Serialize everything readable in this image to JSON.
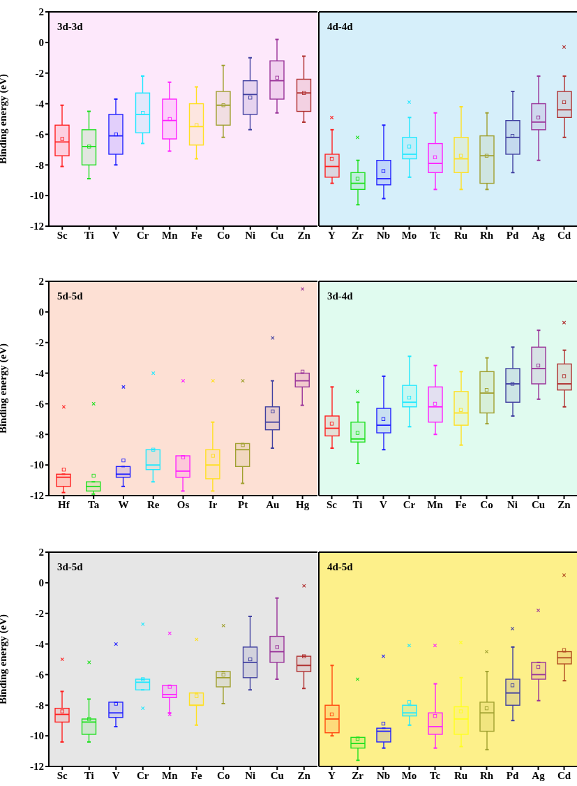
{
  "chart_data": [
    {
      "type": "box",
      "title": "3d-3d",
      "ylabel": "Binding energy (eV)",
      "categories": [
        "Sc",
        "Ti",
        "V",
        "Cr",
        "Mn",
        "Fe",
        "Co",
        "Ni",
        "Cu",
        "Zn"
      ],
      "colors": [
        "#ff2020",
        "#20e020",
        "#2020ff",
        "#20e8ff",
        "#ff20ff",
        "#ffe020",
        "#a0a030",
        "#4040a0",
        "#993399",
        "#b03030"
      ],
      "ylim": [
        -12,
        2
      ],
      "yticks": [
        -12,
        -10,
        -8,
        -6,
        -4,
        -2,
        0,
        2
      ],
      "boxes": [
        {
          "low": -8.1,
          "q1": -7.4,
          "median": -6.5,
          "q3": -5.4,
          "high": -4.1,
          "mean": -6.3
        },
        {
          "low": -8.9,
          "q1": -8.0,
          "median": -6.8,
          "q3": -5.7,
          "high": -4.5,
          "mean": -6.8
        },
        {
          "low": -8.0,
          "q1": -7.3,
          "median": -6.1,
          "q3": -4.7,
          "high": -3.7,
          "mean": -6.0
        },
        {
          "low": -6.6,
          "q1": -5.9,
          "median": -4.7,
          "q3": -3.3,
          "high": -2.2,
          "mean": -4.6
        },
        {
          "low": -7.1,
          "q1": -6.3,
          "median": -5.1,
          "q3": -3.7,
          "high": -2.6,
          "mean": -5.0
        },
        {
          "low": -7.6,
          "q1": -6.7,
          "median": -5.5,
          "q3": -4.0,
          "high": -2.9,
          "mean": -5.4
        },
        {
          "low": -6.2,
          "q1": -5.4,
          "median": -4.1,
          "q3": -3.2,
          "high": -1.5,
          "mean": -4.1
        },
        {
          "low": -5.7,
          "q1": -4.7,
          "median": -3.4,
          "q3": -2.5,
          "high": -1.0,
          "mean": -3.6
        },
        {
          "low": -4.6,
          "q1": -3.7,
          "median": -2.5,
          "q3": -1.2,
          "high": 0.2,
          "mean": -2.3
        },
        {
          "low": -5.2,
          "q1": -4.5,
          "median": -3.3,
          "q3": -2.4,
          "high": -0.9,
          "mean": -3.3
        }
      ]
    },
    {
      "type": "box",
      "title": "4d-4d",
      "tick_labels": "x",
      "categories": [
        "Y",
        "Zr",
        "Nb",
        "Mo",
        "Tc",
        "Ru",
        "Rh",
        "Pd",
        "Ag",
        "Cd"
      ],
      "colors": [
        "#ff2020",
        "#20e020",
        "#2020ff",
        "#20e8ff",
        "#ff20ff",
        "#ffe020",
        "#a0a030",
        "#4040a0",
        "#993399",
        "#b03030"
      ],
      "ylim": [
        -12,
        2
      ],
      "yticks": [
        -12,
        -10,
        -8,
        -6,
        -4,
        -2,
        0,
        2
      ],
      "boxes": [
        {
          "low": -9.2,
          "q1": -8.8,
          "median": -8.1,
          "q3": -7.3,
          "high": -5.7,
          "mean": -7.6,
          "outliers": [
            -4.9
          ]
        },
        {
          "low": -10.6,
          "q1": -9.6,
          "median": -9.2,
          "q3": -8.5,
          "high": -7.7,
          "mean": -8.9,
          "outliers": [
            -6.2
          ]
        },
        {
          "low": -10.2,
          "q1": -9.3,
          "median": -8.9,
          "q3": -7.7,
          "high": -5.4,
          "mean": -8.4
        },
        {
          "low": -8.8,
          "q1": -7.6,
          "median": -7.3,
          "q3": -6.2,
          "high": -4.9,
          "mean": -6.8,
          "outliers": [
            -3.9
          ]
        },
        {
          "low": -9.6,
          "q1": -8.5,
          "median": -7.9,
          "q3": -6.6,
          "high": -4.6,
          "mean": -7.5
        },
        {
          "low": -9.6,
          "q1": -8.5,
          "median": -7.6,
          "q3": -6.2,
          "high": -4.2,
          "mean": -7.4
        },
        {
          "low": -9.6,
          "q1": -9.2,
          "median": -7.4,
          "q3": -6.1,
          "high": -4.6,
          "mean": -7.4
        },
        {
          "low": -8.5,
          "q1": -7.3,
          "median": -6.2,
          "q3": -5.1,
          "high": -3.2,
          "mean": -6.1
        },
        {
          "low": -7.7,
          "q1": -5.7,
          "median": -5.2,
          "q3": -4.0,
          "high": -2.2,
          "mean": -4.9
        },
        {
          "low": -6.2,
          "q1": -4.9,
          "median": -4.4,
          "q3": -3.2,
          "high": -2.2,
          "mean": -3.9,
          "outliers": [
            -0.3
          ]
        }
      ]
    },
    {
      "type": "box",
      "title": "5d-5d",
      "ylabel": "Binding energy (eV)",
      "categories": [
        "Hf",
        "Ta",
        "W",
        "Re",
        "Os",
        "Ir",
        "Pt",
        "Au",
        "Hg"
      ],
      "colors": [
        "#ff2020",
        "#20e020",
        "#2020ff",
        "#20e8ff",
        "#ff20ff",
        "#ffe020",
        "#a0a030",
        "#4040a0",
        "#993399"
      ],
      "ylim": [
        -12,
        2
      ],
      "yticks": [
        -12,
        -10,
        -8,
        -6,
        -4,
        -2,
        0,
        2
      ],
      "boxes": [
        {
          "low": -11.8,
          "q1": -11.4,
          "median": -10.8,
          "q3": -10.6,
          "high": -10.6,
          "mean": -10.3,
          "outliers": [
            -6.2
          ]
        },
        {
          "low": -11.9,
          "q1": -11.7,
          "median": -11.4,
          "q3": -11.1,
          "high": -11.1,
          "mean": -10.7,
          "outliers": [
            -6.0
          ]
        },
        {
          "low": -11.4,
          "q1": -10.8,
          "median": -10.6,
          "q3": -10.1,
          "high": -10.1,
          "mean": -9.7,
          "outliers": [
            -4.9
          ]
        },
        {
          "low": -11.1,
          "q1": -10.3,
          "median": -10.0,
          "q3": -9.0,
          "high": -9.0,
          "mean": -9.0,
          "outliers": [
            -4.0
          ]
        },
        {
          "low": -11.7,
          "q1": -10.8,
          "median": -10.4,
          "q3": -9.4,
          "high": -9.4,
          "mean": -9.5,
          "outliers": [
            -4.5
          ]
        },
        {
          "low": -11.7,
          "q1": -10.9,
          "median": -10.0,
          "q3": -9.0,
          "high": -7.2,
          "mean": -9.4,
          "outliers": [
            -4.5
          ]
        },
        {
          "low": -11.2,
          "q1": -10.1,
          "median": -9.0,
          "q3": -8.6,
          "high": -8.6,
          "mean": -8.7,
          "outliers": [
            -4.5
          ]
        },
        {
          "low": -8.9,
          "q1": -7.7,
          "median": -7.2,
          "q3": -6.2,
          "high": -4.5,
          "mean": -6.5,
          "outliers": [
            -1.7
          ]
        },
        {
          "low": -6.1,
          "q1": -4.9,
          "median": -4.5,
          "q3": -4.0,
          "high": -4.0,
          "mean": -3.9,
          "outliers": [
            1.5
          ]
        }
      ]
    },
    {
      "type": "box",
      "title": "3d-4d",
      "tick_labels": "x",
      "categories": [
        "Sc",
        "Ti",
        "V",
        "Cr",
        "Mn",
        "Fe",
        "Co",
        "Ni",
        "Cu",
        "Zn"
      ],
      "colors": [
        "#ff2020",
        "#20e020",
        "#2020ff",
        "#20e8ff",
        "#ff20ff",
        "#ffe020",
        "#a0a030",
        "#4040a0",
        "#993399",
        "#b03030"
      ],
      "ylim": [
        -12,
        2
      ],
      "yticks": [
        -12,
        -10,
        -8,
        -6,
        -4,
        -2,
        0,
        2
      ],
      "boxes": [
        {
          "low": -8.9,
          "q1": -8.1,
          "median": -7.6,
          "q3": -6.8,
          "high": -4.9,
          "mean": -7.3
        },
        {
          "low": -9.9,
          "q1": -8.5,
          "median": -8.3,
          "q3": -7.2,
          "high": -5.9,
          "mean": -7.9,
          "outliers": [
            -5.2
          ]
        },
        {
          "low": -9.0,
          "q1": -7.9,
          "median": -7.4,
          "q3": -6.3,
          "high": -4.2,
          "mean": -7.0
        },
        {
          "low": -7.5,
          "q1": -6.2,
          "median": -5.9,
          "q3": -4.8,
          "high": -2.9,
          "mean": -5.6
        },
        {
          "low": -8.0,
          "q1": -7.2,
          "median": -6.2,
          "q3": -4.9,
          "high": -3.5,
          "mean": -6.0
        },
        {
          "low": -8.7,
          "q1": -7.4,
          "median": -6.6,
          "q3": -5.2,
          "high": -3.9,
          "mean": -6.4
        },
        {
          "low": -7.3,
          "q1": -6.6,
          "median": -5.3,
          "q3": -3.9,
          "high": -3.0,
          "mean": -5.1
        },
        {
          "low": -6.8,
          "q1": -5.9,
          "median": -4.7,
          "q3": -3.7,
          "high": -2.3,
          "mean": -4.7
        },
        {
          "low": -5.7,
          "q1": -4.7,
          "median": -3.7,
          "q3": -2.3,
          "high": -1.2,
          "mean": -3.5
        },
        {
          "low": -6.2,
          "q1": -5.1,
          "median": -4.7,
          "q3": -3.4,
          "high": -2.5,
          "mean": -4.2,
          "outliers": [
            -0.7
          ]
        }
      ]
    },
    {
      "type": "box",
      "title": "3d-5d",
      "ylabel": "Binding energy (eV)",
      "categories": [
        "Sc",
        "Ti",
        "V",
        "Cr",
        "Mn",
        "Fe",
        "Co",
        "Ni",
        "Cu",
        "Zn"
      ],
      "colors": [
        "#ff2020",
        "#20e020",
        "#2020ff",
        "#20e8ff",
        "#ff20ff",
        "#ffe020",
        "#a0a030",
        "#4040a0",
        "#993399",
        "#b03030"
      ],
      "ylim": [
        -12,
        2
      ],
      "yticks": [
        -12,
        -10,
        -8,
        -6,
        -4,
        -2,
        0,
        2
      ],
      "boxes": [
        {
          "low": -10.4,
          "q1": -9.1,
          "median": -8.6,
          "q3": -8.2,
          "high": -7.1,
          "mean": -8.4,
          "outliers": [
            -5.0
          ]
        },
        {
          "low": -10.4,
          "q1": -9.9,
          "median": -9.1,
          "q3": -8.9,
          "high": -7.6,
          "mean": -8.9,
          "outliers": [
            -5.2
          ]
        },
        {
          "low": -9.4,
          "q1": -8.8,
          "median": -8.5,
          "q3": -7.8,
          "high": -7.8,
          "mean": -7.9,
          "outliers": [
            -4.0
          ]
        },
        {
          "low": -7.0,
          "q1": -7.0,
          "median": -6.5,
          "q3": -6.3,
          "high": -6.3,
          "mean": -6.3,
          "outliers": [
            -2.7,
            -8.2
          ]
        },
        {
          "low": -8.5,
          "q1": -7.5,
          "median": -7.3,
          "q3": -6.7,
          "high": -6.7,
          "mean": -6.8,
          "outliers": [
            -3.3,
            -8.6
          ]
        },
        {
          "low": -9.3,
          "q1": -8.0,
          "median": -8.0,
          "q3": -7.2,
          "high": -7.2,
          "mean": -7.4,
          "outliers": [
            -3.7
          ]
        },
        {
          "low": -7.9,
          "q1": -6.8,
          "median": -6.2,
          "q3": -5.8,
          "high": -5.8,
          "mean": -6.0,
          "outliers": [
            -2.8
          ]
        },
        {
          "low": -7.0,
          "q1": -6.2,
          "median": -5.2,
          "q3": -4.2,
          "high": -2.2,
          "mean": -5.0
        },
        {
          "low": -6.3,
          "q1": -5.2,
          "median": -4.5,
          "q3": -3.5,
          "high": -1.0,
          "mean": -4.2
        },
        {
          "low": -6.9,
          "q1": -5.8,
          "median": -5.4,
          "q3": -4.8,
          "high": -4.8,
          "mean": -4.8,
          "outliers": [
            -0.2
          ]
        }
      ]
    },
    {
      "type": "box",
      "title": "4d-5d",
      "tick_labels": "x",
      "categories": [
        "Y",
        "Zr",
        "Nb",
        "Mo",
        "Tc",
        "Ru",
        "Rh",
        "Pd",
        "Ag",
        "Cd"
      ],
      "colors": [
        "#ff4a10",
        "#20e020",
        "#2020ff",
        "#20e8ff",
        "#ff20ff",
        "#ffff20",
        "#a0a030",
        "#4040a0",
        "#993399",
        "#b04a20"
      ],
      "ylim": [
        -12,
        2
      ],
      "yticks": [
        -12,
        -10,
        -8,
        -6,
        -4,
        -2,
        0,
        2
      ],
      "boxes": [
        {
          "low": -10.0,
          "q1": -9.8,
          "median": -8.9,
          "q3": -8.0,
          "high": -5.4,
          "mean": -8.6
        },
        {
          "low": -11.6,
          "q1": -10.8,
          "median": -10.5,
          "q3": -10.1,
          "high": -10.1,
          "mean": -10.2,
          "outliers": [
            -6.3
          ]
        },
        {
          "low": -10.8,
          "q1": -10.4,
          "median": -9.7,
          "q3": -9.5,
          "high": -9.5,
          "mean": -9.2,
          "outliers": [
            -4.8
          ]
        },
        {
          "low": -9.3,
          "q1": -8.7,
          "median": -8.5,
          "q3": -8.0,
          "high": -8.0,
          "mean": -7.8,
          "outliers": [
            -4.1
          ]
        },
        {
          "low": -10.8,
          "q1": -9.9,
          "median": -9.4,
          "q3": -8.5,
          "high": -6.6,
          "mean": -8.7,
          "outliers": [
            -4.1
          ]
        },
        {
          "low": -10.7,
          "q1": -9.9,
          "median": -8.9,
          "q3": -8.1,
          "high": -6.2,
          "mean": -8.4,
          "outliers": [
            -3.9
          ]
        },
        {
          "low": -10.9,
          "q1": -9.7,
          "median": -8.5,
          "q3": -7.8,
          "high": -5.8,
          "mean": -8.2,
          "outliers": [
            -4.5
          ]
        },
        {
          "low": -9.0,
          "q1": -8.0,
          "median": -7.2,
          "q3": -6.3,
          "high": -4.2,
          "mean": -6.7,
          "outliers": [
            -3.0
          ]
        },
        {
          "low": -7.7,
          "q1": -6.3,
          "median": -6.0,
          "q3": -5.2,
          "high": -5.2,
          "mean": -5.5,
          "outliers": [
            -1.8
          ]
        },
        {
          "low": -6.4,
          "q1": -5.3,
          "median": -4.9,
          "q3": -4.5,
          "high": -4.5,
          "mean": -4.4,
          "outliers": [
            0.5
          ]
        }
      ]
    }
  ]
}
